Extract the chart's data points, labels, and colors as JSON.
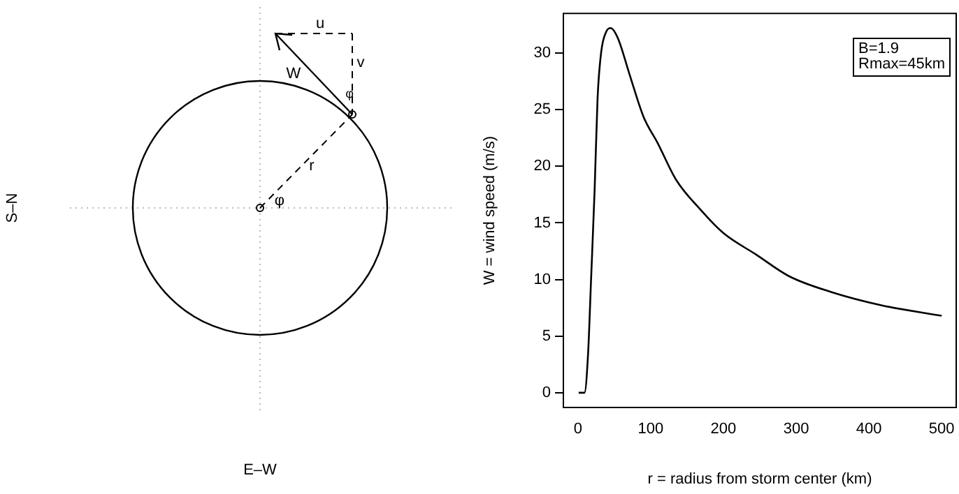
{
  "chart_data": [
    {
      "type": "other",
      "xlabel": "E–W",
      "ylabel": "S–N",
      "annotations": [
        "u",
        "v",
        "W",
        "φ",
        "r",
        "φ"
      ]
    },
    {
      "type": "line",
      "xlabel": "r = radius from storm center (km)",
      "ylabel": "W = wind speed (m/s)",
      "annotations": [
        "B=1.9",
        "Rmax=45km"
      ],
      "x": [
        1,
        9,
        14,
        18,
        23,
        27,
        32,
        39,
        45,
        55,
        71,
        90,
        110,
        135,
        168,
        200,
        245,
        290,
        348,
        419,
        500
      ],
      "series": [
        {
          "color": "#000000",
          "values": [
            0,
            0,
            3.5,
            9.9,
            18,
            26,
            30.1,
            31.9,
            32.2,
            31.3,
            28.1,
            24.4,
            22,
            18.8,
            16.2,
            14.1,
            12.2,
            10.3,
            8.9,
            7.7,
            6.8
          ]
        }
      ],
      "xlim": [
        -20,
        520
      ],
      "ylim": [
        -1.3,
        33.5
      ],
      "xticks": [
        0,
        100,
        200,
        300,
        400,
        500
      ],
      "yticks": [
        0,
        5,
        10,
        15,
        20,
        25,
        30
      ],
      "marker": "none",
      "line_style": "solid"
    }
  ]
}
